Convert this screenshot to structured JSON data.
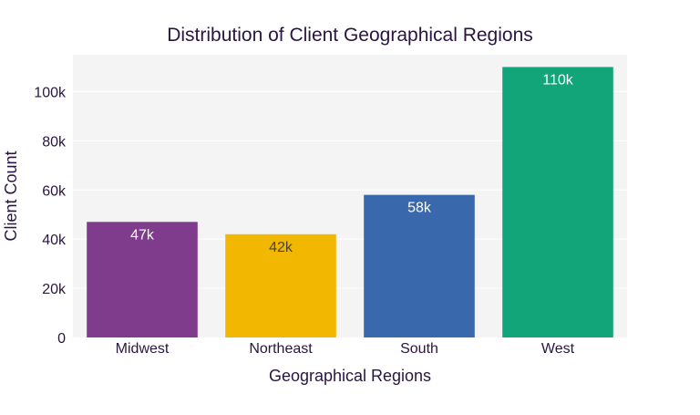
{
  "chart_data": {
    "type": "bar",
    "title": "Distribution of Client Geographical Regions",
    "xlabel": "Geographical Regions",
    "ylabel": "Client Count",
    "categories": [
      "Midwest",
      "Northeast",
      "South",
      "West"
    ],
    "values": [
      47000,
      42000,
      58000,
      110000
    ],
    "data_labels": [
      "47k",
      "42k",
      "58k",
      "110k"
    ],
    "bar_colors": [
      "#7f3c8d",
      "#f2b701",
      "#3969ac",
      "#11a579"
    ],
    "data_label_colors": [
      "#ffffff",
      "#444444",
      "#ffffff",
      "#ffffff"
    ],
    "y_ticks": [
      0,
      20000,
      40000,
      60000,
      80000,
      100000
    ],
    "y_tick_labels": [
      "0",
      "20k",
      "40k",
      "60k",
      "80k",
      "100k"
    ],
    "ylim": [
      0,
      115000
    ],
    "grid": true,
    "plot_background": "#f4f4f4",
    "legend": "none"
  }
}
